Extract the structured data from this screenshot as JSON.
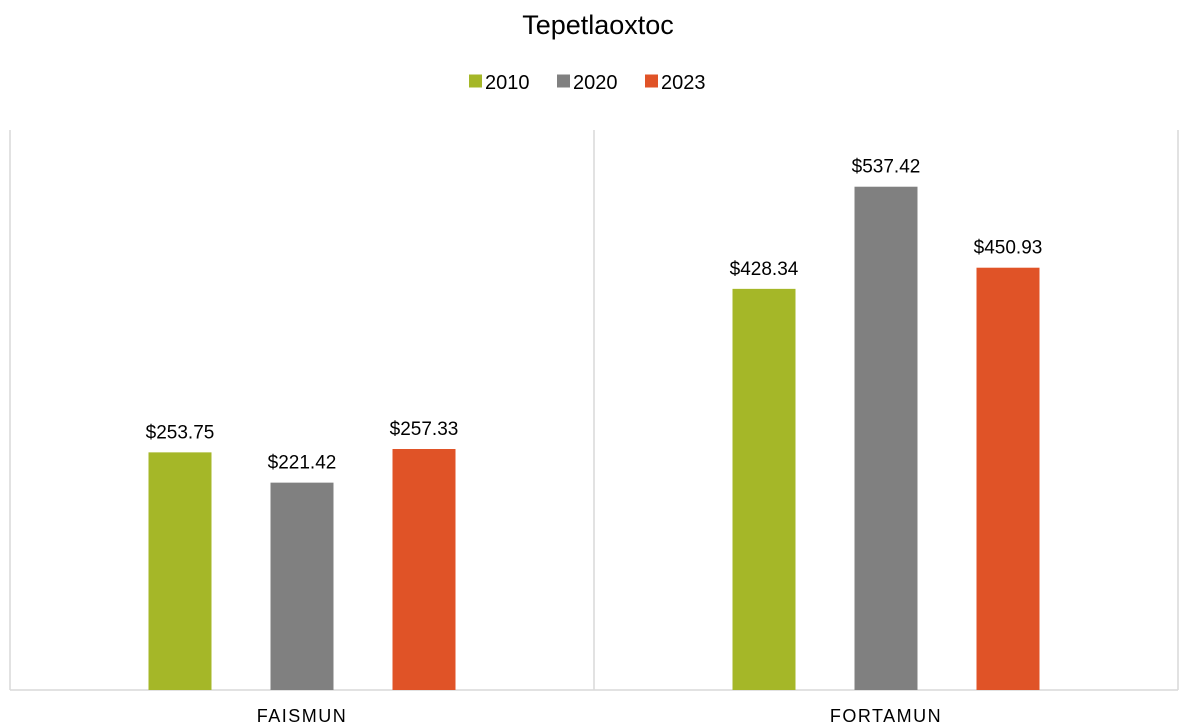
{
  "chart_data": {
    "type": "bar",
    "title": "Tepetlaoxtoc",
    "categories": [
      "FAISMUN",
      "FORTAMUN"
    ],
    "series": [
      {
        "name": "2010",
        "color": "#a5b728",
        "values": [
          253.75,
          428.34
        ],
        "labels": [
          "$253.75",
          "$428.34"
        ]
      },
      {
        "name": "2020",
        "color": "#808080",
        "values": [
          221.42,
          537.42
        ],
        "labels": [
          "$221.42",
          "$537.42"
        ]
      },
      {
        "name": "2023",
        "color": "#e05327",
        "values": [
          257.33,
          450.93
        ],
        "labels": [
          "$257.33",
          "$450.93"
        ]
      }
    ],
    "xlabel": "",
    "ylabel": "",
    "ylim": [
      0,
      600
    ],
    "legend_position": "top",
    "grid": false
  }
}
